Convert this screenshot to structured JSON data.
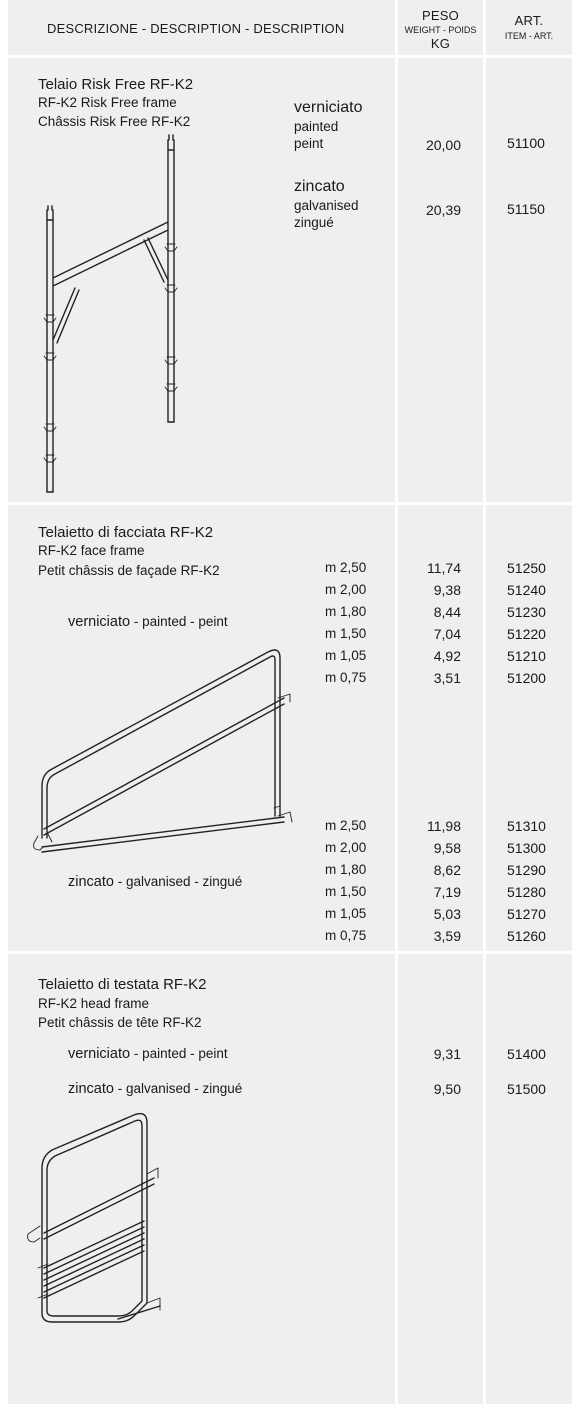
{
  "header": {
    "description": "DESCRIZIONE - DESCRIPTION - DESCRIPTION",
    "weight_line1": "PESO",
    "weight_line2": "WEIGHT - POIDS",
    "weight_line3": "KG",
    "art_line1": "ART.",
    "art_line2": "ITEM - ART."
  },
  "section1": {
    "title": "Telaio Risk Free RF-K2",
    "line2": "RF-K2 Risk Free frame",
    "line3": "Châssis Risk Free RF-K2",
    "painted": {
      "l1": "verniciato",
      "l2": "painted",
      "l3": "peint",
      "weight": "20,00",
      "art": "51100"
    },
    "galvanised": {
      "l1": "zincato",
      "l2": "galvanised",
      "l3": "zingué",
      "weight": "20,39",
      "art": "51150"
    }
  },
  "section2": {
    "title": "Telaietto di facciata RF-K2",
    "line2": "RF-K2 face frame",
    "line3": "Petit châssis de façade RF-K2",
    "painted_label": {
      "it": "verniciato",
      "sep1": " - ",
      "en": "painted",
      "sep2": " - ",
      "fr": "peint"
    },
    "galvanised_label": {
      "it": "zincato",
      "sep1": " - ",
      "en": "galvanised",
      "sep2": " - ",
      "fr": "zingué"
    },
    "painted_rows": [
      {
        "size": "m 2,50",
        "weight": "11,74",
        "art": "51250"
      },
      {
        "size": "m 2,00",
        "weight": "9,38",
        "art": "51240"
      },
      {
        "size": "m 1,80",
        "weight": "8,44",
        "art": "51230"
      },
      {
        "size": "m 1,50",
        "weight": "7,04",
        "art": "51220"
      },
      {
        "size": "m 1,05",
        "weight": "4,92",
        "art": "51210"
      },
      {
        "size": "m 0,75",
        "weight": "3,51",
        "art": "51200"
      }
    ],
    "galvanised_rows": [
      {
        "size": "m 2,50",
        "weight": "11,98",
        "art": "51310"
      },
      {
        "size": "m 2,00",
        "weight": "9,58",
        "art": "51300"
      },
      {
        "size": "m 1,80",
        "weight": "8,62",
        "art": "51290"
      },
      {
        "size": "m 1,50",
        "weight": "7,19",
        "art": "51280"
      },
      {
        "size": "m 1,05",
        "weight": "5,03",
        "art": "51270"
      },
      {
        "size": "m 0,75",
        "weight": "3,59",
        "art": "51260"
      }
    ]
  },
  "section3": {
    "title": "Telaietto di testata RF-K2",
    "line2": "RF-K2 head frame",
    "line3": "Petit châssis de tête RF-K2",
    "painted": {
      "it": "verniciato",
      "sep1": " - ",
      "en": "painted",
      "sep2": " - ",
      "fr": "peint",
      "weight": "9,31",
      "art": "51400"
    },
    "galvanised": {
      "it": "zincato",
      "sep1": " - ",
      "en": "galvanised",
      "sep2": " - ",
      "fr": "zingué",
      "weight": "9,50",
      "art": "51500"
    }
  }
}
